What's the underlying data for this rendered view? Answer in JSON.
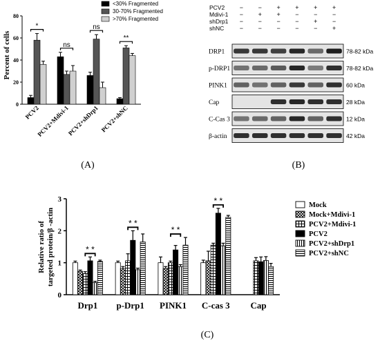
{
  "panel_labels": {
    "a": "(A)",
    "b": "(B)",
    "c": "(C)"
  },
  "colors": {
    "black": "#000000",
    "dark_gray": "#555555",
    "light_gray": "#d0d0d0",
    "white": "#ffffff",
    "blot_band": "#2b2b2b",
    "blot_bg": "#dcdcdc"
  },
  "chart_data": [
    {
      "type": "bar",
      "id": "panel-a",
      "ylabel": "Percent of cells",
      "ylim": [
        0,
        80
      ],
      "yticks": [
        "0",
        "20",
        "40",
        "60",
        "80"
      ],
      "categories": [
        "PCV2",
        "PCV2+Mdivi-1",
        "PCV2+shDrp1",
        "PCV2+shNC"
      ],
      "series": [
        {
          "name": "<30% Fragmented",
          "color": "#000000",
          "values": [
            6,
            43,
            26,
            5
          ],
          "errors": [
            2,
            4,
            3,
            1
          ]
        },
        {
          "name": "30-70% Fragmented",
          "color": "#555555",
          "values": [
            58,
            27,
            59,
            51
          ],
          "errors": [
            6,
            3,
            4,
            2
          ]
        },
        {
          "name": ">70% Fragmented",
          "color": "#d0d0d0",
          "values": [
            36,
            30,
            15,
            44
          ],
          "errors": [
            3,
            5,
            5,
            2
          ]
        }
      ],
      "significance": [
        "*",
        "ns",
        "ns",
        "**"
      ]
    },
    {
      "type": "bar",
      "id": "panel-c",
      "ylabel_line1": "Relative ratio of",
      "ylabel_line2": "targeted protein/β -actin",
      "ylim": [
        0,
        3
      ],
      "yticks": [
        "0",
        "1",
        "2",
        "3"
      ],
      "categories": [
        "Drp1",
        "p-Drp1",
        "PINK1",
        "C-cas 3",
        "Cap"
      ],
      "series": [
        {
          "name": "Mock",
          "pattern": "white",
          "values": [
            1.0,
            1.0,
            1.0,
            1.0,
            null
          ],
          "errors": [
            0.05,
            0.05,
            0.18,
            0.08,
            null
          ]
        },
        {
          "name": "Mock+Mdivi-1",
          "pattern": "cross",
          "values": [
            0.73,
            0.82,
            0.82,
            1.06,
            null
          ],
          "errors": [
            0.04,
            0.06,
            0.06,
            0.3,
            null
          ]
        },
        {
          "name": "PCV2+Mdivi-1",
          "pattern": "grid",
          "values": [
            0.66,
            1.06,
            1.0,
            1.55,
            1.06
          ],
          "errors": [
            0.06,
            0.22,
            0.05,
            0.06,
            0.1
          ]
        },
        {
          "name": "PCV2",
          "pattern": "black",
          "values": [
            1.06,
            1.7,
            1.4,
            2.55,
            1.03
          ],
          "errors": [
            0.12,
            0.3,
            0.14,
            0.15,
            0.15
          ]
        },
        {
          "name": "PCV2+shDrp1",
          "pattern": "vstripe",
          "values": [
            0.38,
            0.78,
            0.88,
            1.53,
            1.07
          ],
          "errors": [
            0.04,
            0.05,
            0.06,
            0.08,
            0.12
          ]
        },
        {
          "name": "PCV2+shNC",
          "pattern": "hstripe",
          "values": [
            1.04,
            1.65,
            1.55,
            2.42,
            0.88
          ],
          "errors": [
            0.04,
            0.25,
            0.24,
            0.06,
            0.1
          ]
        }
      ],
      "significance": [
        "* *",
        "* *",
        "* *",
        "* *",
        ""
      ]
    }
  ],
  "blot": {
    "conditions": [
      {
        "label": "PCV2",
        "marks": [
          "−",
          "−",
          "+",
          "+",
          "+",
          "+"
        ]
      },
      {
        "label": "Mdivi-1",
        "marks": [
          "−",
          "+",
          "+",
          "−",
          "−",
          "−"
        ]
      },
      {
        "label": "shDrp1",
        "marks": [
          "−",
          "−",
          "−",
          "−",
          "+",
          "−"
        ]
      },
      {
        "label": "shNC",
        "marks": [
          "−",
          "−",
          "−",
          "−",
          "−",
          "+"
        ]
      }
    ],
    "rows": [
      {
        "protein": "DRP1",
        "size": "78-82 kDa",
        "intensity": [
          0.85,
          0.85,
          0.8,
          0.95,
          0.55,
          1.0
        ]
      },
      {
        "protein": "p-DRP1",
        "size": "78-82 kDa",
        "intensity": [
          0.5,
          0.55,
          0.65,
          0.95,
          0.45,
          0.9
        ]
      },
      {
        "protein": "PINK1",
        "size": "60 kDa",
        "intensity": [
          0.6,
          0.5,
          0.6,
          0.85,
          0.6,
          0.9
        ]
      },
      {
        "protein": "Cap",
        "size": "28 kDa",
        "intensity": [
          0.0,
          0.0,
          0.9,
          0.95,
          0.9,
          0.9
        ]
      },
      {
        "protein": "C-Cas 3",
        "size": "12 kDa",
        "intensity": [
          0.5,
          0.55,
          0.6,
          0.95,
          0.6,
          0.9
        ]
      },
      {
        "protein": "β-actin",
        "size": "42 kDa",
        "intensity": [
          0.9,
          0.9,
          0.9,
          0.9,
          0.9,
          0.9
        ]
      }
    ]
  }
}
